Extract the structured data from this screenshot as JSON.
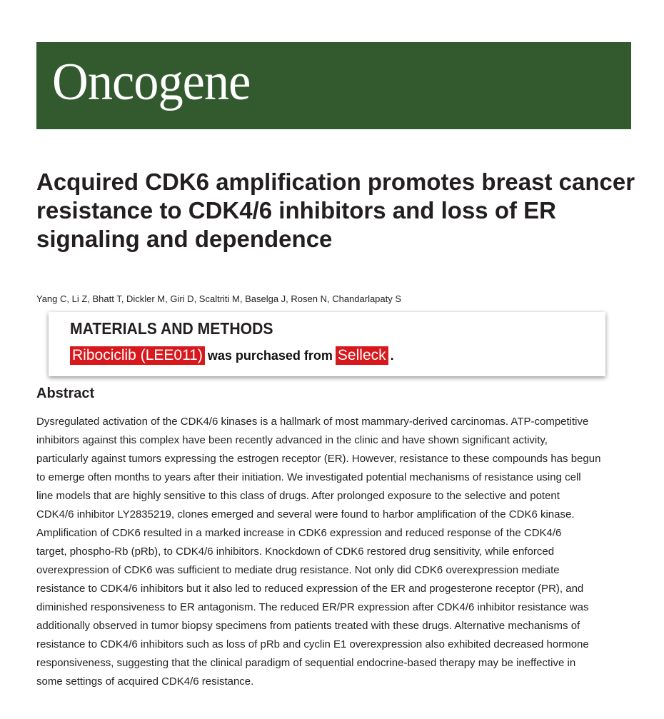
{
  "journal": {
    "name": "Oncogene",
    "color": "#335a2f"
  },
  "article": {
    "title": "Acquired CDK6 amplification promotes breast cancer resistance to CDK4/6 inhibitors and loss of ER signaling and dependence",
    "authors": "Yang C, Li Z, Bhatt T, Dickler M, Giri D, Scaltriti M, Baselga J, Rosen N, Chandarlapaty S",
    "abstract_heading": "Abstract",
    "abstract_lines": [
      "Dysregulated activation of the CDK4/6 kinases is a hallmark of most mammary-derived carcinomas. ATP-competitive",
      "inhibitors against this complex have been recently advanced in the clinic and have shown significant activity,",
      "particularly against tumors expressing the estrogen receptor (ER). However, resistance to these compounds has begun",
      "to emerge often months to years after their initiation. We investigated potential mechanisms of resistance using cell",
      "line models that are highly sensitive to this class of drugs. After prolonged exposure to the selective and potent",
      "CDK4/6 inhibitor LY2835219, clones emerged and several were found to harbor amplification of the CDK6 kinase.",
      "Amplification of CDK6 resulted in a marked increase in CDK6 expression and reduced response of the CDK4/6",
      "target, phospho-Rb (pRb), to CDK4/6 inhibitors. Knockdown of CDK6 restored drug sensitivity, while enforced",
      "overexpression of CDK6 was sufficient to mediate drug resistance. Not only did CDK6 overexpression mediate",
      "resistance to CDK4/6 inhibitors but it also led to reduced expression of the ER and progesterone receptor (PR), and",
      "diminished responsiveness to ER antagonism. The reduced ER/PR expression after CDK4/6 inhibitor resistance was",
      "additionally observed in tumor biopsy specimens from patients treated with these drugs. Alternative mechanisms of",
      "resistance to CDK4/6 inhibitors such as loss of pRb and cyclin E1 overexpression also exhibited decreased hormone",
      "responsiveness, suggesting that the clinical paradigm of sequential endocrine-based therapy may be ineffective in",
      "some settings of acquired CDK4/6 resistance."
    ]
  },
  "overlay": {
    "heading": "MATERIALS AND METHODS",
    "compound": "Ribociclib (LEE011)",
    "middle": "was purchased from",
    "supplier": "Selleck",
    "end": ".",
    "highlight_color": "#d7191d"
  }
}
